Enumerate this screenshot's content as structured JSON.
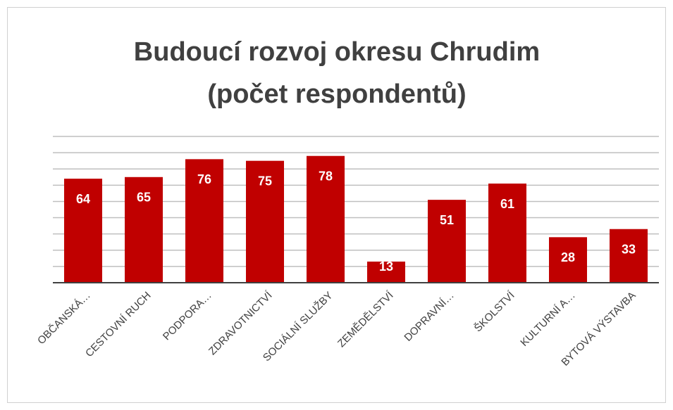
{
  "chart_data": {
    "type": "bar",
    "title": [
      "Budoucí rozvoj okresu Chrudim",
      "(počet respondentů)"
    ],
    "categories": [
      "OBČANSKÁ…",
      "CESTOVNÍ RUCH",
      "PODPORA…",
      "ZDRAVOTNICTVÍ",
      "SOCIÁLNÍ SLUŽBY",
      "ZEMĚDĚLSTVÍ",
      "DOPRAVNÍ…",
      "ŠKOLSTVÍ",
      "KULTURNÍ A…",
      "BYTOVÁ VÝSTAVBA"
    ],
    "values": [
      64,
      65,
      76,
      75,
      78,
      13,
      51,
      61,
      28,
      33
    ],
    "color": "#c00000",
    "ylim": [
      0,
      90
    ],
    "yticks": [
      0,
      10,
      20,
      30,
      40,
      50,
      60,
      70,
      80,
      90
    ],
    "grid": true
  }
}
